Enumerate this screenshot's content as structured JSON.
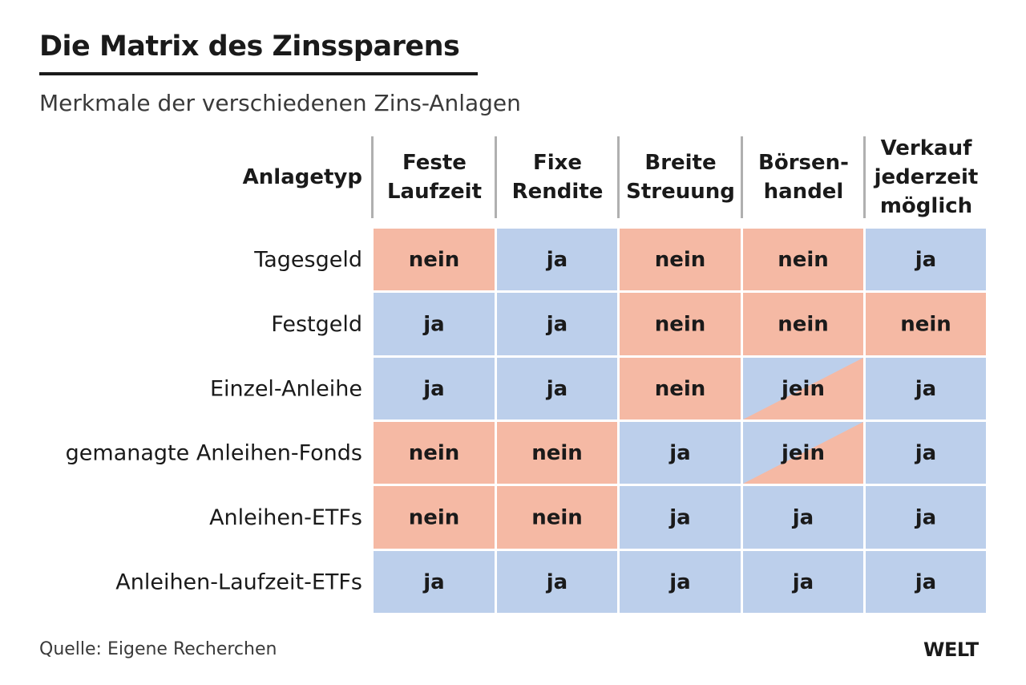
{
  "title": "Die Matrix des Zinssparens",
  "subtitle": "Merkmale der verschiedenen Zins-Anlagen",
  "source": "Quelle: Eigene Recherchen",
  "brand": "WELT",
  "colors": {
    "ja": "#bccfeb",
    "nein": "#f5b9a4",
    "divider": "#b0b0b0",
    "text": "#1a1a1a"
  },
  "chart_data": {
    "type": "table",
    "corner_header": "Anlagetyp",
    "columns": [
      [
        "Feste",
        "Laufzeit"
      ],
      [
        "Fixe",
        "Rendite"
      ],
      [
        "Breite",
        "Streuung"
      ],
      [
        "Börsen-",
        "handel"
      ],
      [
        "Verkauf",
        "jederzeit",
        "möglich"
      ]
    ],
    "rows": [
      "Tagesgeld",
      "Festgeld",
      "Einzel-Anleihe",
      "gemanagte Anleihen-Fonds",
      "Anleihen-ETFs",
      "Anleihen-Laufzeit-ETFs"
    ],
    "values": [
      [
        "nein",
        "ja",
        "nein",
        "nein",
        "ja"
      ],
      [
        "ja",
        "ja",
        "nein",
        "nein",
        "nein"
      ],
      [
        "ja",
        "ja",
        "nein",
        "jein",
        "ja"
      ],
      [
        "nein",
        "nein",
        "ja",
        "jein",
        "ja"
      ],
      [
        "nein",
        "nein",
        "ja",
        "ja",
        "ja"
      ],
      [
        "ja",
        "ja",
        "ja",
        "ja",
        "ja"
      ]
    ]
  }
}
